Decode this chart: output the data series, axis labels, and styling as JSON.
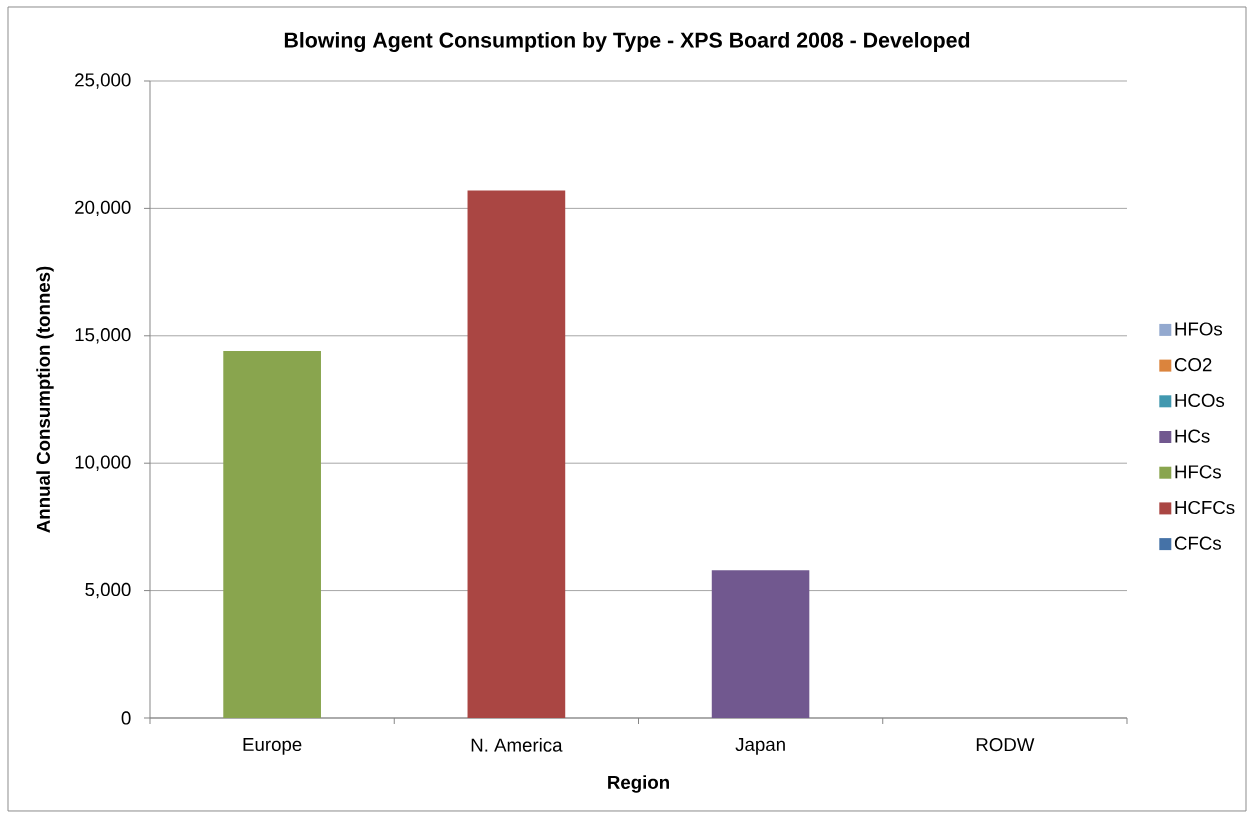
{
  "chart_data": {
    "type": "bar",
    "title": "Blowing Agent Consumption by Type - XPS Board 2008 - Developed",
    "xlabel": "Region",
    "ylabel": "Annual Consumption (tonnes)",
    "categories": [
      "Europe",
      "N. America",
      "Japan",
      "RODW"
    ],
    "stacked": true,
    "series": [
      {
        "name": "CFCs",
        "color": "#4572a7",
        "values": [
          null,
          null,
          null,
          null
        ]
      },
      {
        "name": "HCFCs",
        "color": "#aa4643",
        "values": [
          null,
          20700,
          null,
          null
        ]
      },
      {
        "name": "HFCs",
        "color": "#89a54e",
        "values": [
          14400,
          null,
          null,
          null
        ]
      },
      {
        "name": "HCs",
        "color": "#71588f",
        "values": [
          null,
          null,
          5800,
          null
        ]
      },
      {
        "name": "HCOs",
        "color": "#4198af",
        "values": [
          null,
          null,
          null,
          null
        ]
      },
      {
        "name": "CO2",
        "color": "#db843d",
        "values": [
          null,
          null,
          null,
          null
        ]
      },
      {
        "name": "HFOs",
        "color": "#93a9cf",
        "values": [
          null,
          null,
          null,
          null
        ]
      }
    ],
    "ylim": [
      0,
      25000
    ],
    "yticks": [
      0,
      {
        "value": 5000,
        "label": "5,000"
      },
      {
        "value": 10000,
        "label": "10,000"
      },
      {
        "value": 15000,
        "label": "15,000"
      },
      {
        "value": 20000,
        "label": "20,000"
      },
      {
        "value": 25000,
        "label": "25,000"
      }
    ],
    "grid": "y",
    "legend": "right"
  }
}
